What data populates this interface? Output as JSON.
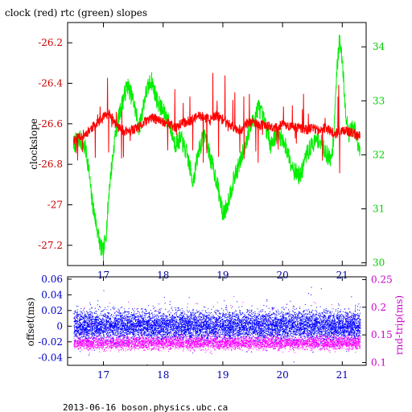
{
  "chart_data": [
    {
      "type": "line",
      "title": "clock (red) rtc (green) slopes",
      "ylabel": "clockslope",
      "xlim": [
        16.4,
        21.4
      ],
      "ylim": [
        -27.3,
        -26.1
      ],
      "y2lim": [
        29.95,
        34.45
      ],
      "x_ticks": [
        17,
        18,
        19,
        20,
        21
      ],
      "y_ticks": [
        -26.2,
        -26.4,
        -26.6,
        -26.8,
        -27,
        -27.2
      ],
      "y_tick_labels": [
        "-26.2",
        "-26.4",
        "-26.6",
        "-26.8",
        "-27",
        "-27.2"
      ],
      "y2_ticks": [
        34,
        33,
        32,
        31,
        30
      ],
      "series": [
        {
          "color": "#ff0000",
          "axis": "left",
          "x": [
            16.5,
            16.6,
            16.7,
            16.8,
            16.9,
            17.0,
            17.1,
            17.2,
            17.3,
            17.4,
            17.5,
            17.6,
            17.7,
            17.8,
            17.9,
            18.0,
            18.1,
            18.2,
            18.3,
            18.4,
            18.5,
            18.6,
            18.7,
            18.8,
            18.9,
            19.0,
            19.1,
            19.2,
            19.3,
            19.4,
            19.5,
            19.6,
            19.7,
            19.8,
            19.9,
            20.0,
            20.1,
            20.2,
            20.3,
            20.4,
            20.5,
            20.6,
            20.7,
            20.8,
            20.9,
            21.0,
            21.1,
            21.2,
            21.3
          ],
          "y": [
            -26.68,
            -26.66,
            -26.65,
            -26.62,
            -26.6,
            -26.57,
            -26.55,
            -26.6,
            -26.63,
            -26.64,
            -26.63,
            -26.62,
            -26.59,
            -26.57,
            -26.58,
            -26.59,
            -26.6,
            -26.62,
            -26.6,
            -26.59,
            -26.58,
            -26.56,
            -26.57,
            -26.58,
            -26.56,
            -26.58,
            -26.6,
            -26.62,
            -26.63,
            -26.6,
            -26.59,
            -26.61,
            -26.6,
            -26.62,
            -26.62,
            -26.6,
            -26.61,
            -26.62,
            -26.62,
            -26.63,
            -26.62,
            -26.63,
            -26.62,
            -26.64,
            -26.65,
            -26.63,
            -26.64,
            -26.65,
            -26.66
          ]
        },
        {
          "color": "#00ee00",
          "axis": "right",
          "x": [
            16.5,
            16.6,
            16.7,
            16.75,
            16.8,
            16.85,
            16.9,
            16.95,
            17.0,
            17.05,
            17.1,
            17.2,
            17.3,
            17.4,
            17.5,
            17.6,
            17.7,
            17.8,
            17.9,
            18.0,
            18.1,
            18.2,
            18.3,
            18.4,
            18.5,
            18.6,
            18.7,
            18.8,
            18.9,
            18.95,
            19.0,
            19.05,
            19.1,
            19.2,
            19.3,
            19.4,
            19.5,
            19.6,
            19.7,
            19.8,
            19.9,
            20.0,
            20.1,
            20.2,
            20.3,
            20.4,
            20.5,
            20.6,
            20.7,
            20.8,
            20.85,
            20.9,
            20.95,
            21.0,
            21.05,
            21.1,
            21.2,
            21.3
          ],
          "y": [
            32.2,
            32.3,
            32.1,
            31.8,
            31.2,
            30.9,
            30.6,
            30.3,
            30.2,
            30.6,
            31.4,
            32.4,
            32.9,
            33.3,
            33.0,
            32.5,
            33.1,
            33.4,
            33.0,
            32.8,
            32.6,
            32.2,
            32.3,
            32.0,
            31.5,
            32.1,
            32.4,
            31.9,
            31.5,
            31.2,
            30.9,
            31.0,
            31.2,
            31.6,
            31.9,
            32.3,
            32.6,
            32.9,
            32.6,
            32.2,
            32.4,
            32.3,
            32.0,
            31.7,
            31.6,
            32.0,
            32.2,
            32.3,
            32.1,
            31.9,
            32.2,
            33.4,
            34.1,
            33.8,
            32.9,
            32.4,
            32.5,
            32.0
          ]
        }
      ]
    },
    {
      "type": "scatter",
      "ylabel": "offset(ms)",
      "y2label": "rnd-trip(ms)",
      "xlim": [
        16.4,
        21.4
      ],
      "ylim": [
        -0.05,
        0.063
      ],
      "y2lim": [
        0.095,
        0.255
      ],
      "x_ticks": [
        17,
        18,
        19,
        20,
        21
      ],
      "y_ticks": [
        0.06,
        0.04,
        0.02,
        0,
        -0.02,
        -0.04
      ],
      "y_tick_labels": [
        "0.06",
        "0.04",
        "0.02",
        "0",
        "-0.02",
        "-0.04"
      ],
      "y2_ticks": [
        0.25,
        0.2,
        0.15,
        0.1
      ],
      "y2_tick_labels": [
        "0.25",
        "0.2",
        "0.15",
        "0.1"
      ],
      "series": [
        {
          "color": "#0000ff",
          "axis": "left",
          "center": 0.0,
          "spread": 0.015
        },
        {
          "color": "#ff00ff",
          "axis": "right",
          "center": 0.135,
          "spread": 0.01
        }
      ]
    }
  ],
  "footer": "2013-06-16 boson.physics.ubc.ca",
  "colors": {
    "left_axis_top": "#cc0000",
    "right_axis_top": "#00cc00",
    "left_axis_bottom": "#0000cc",
    "right_axis_bottom": "#cc00cc"
  }
}
